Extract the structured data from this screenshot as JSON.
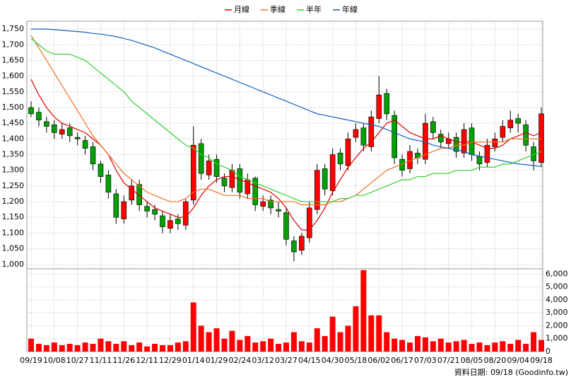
{
  "chart_data": {
    "type": "candlestick",
    "legend": "top",
    "grid": true,
    "up_color": "#ff0000",
    "down_color": "#00a000",
    "wick_color": "#000000",
    "categories": [
      "09/19",
      null,
      null,
      "10/08",
      null,
      null,
      "10/27",
      null,
      null,
      "11/11",
      null,
      null,
      "11/26",
      null,
      null,
      "12/11",
      null,
      null,
      "12/29",
      null,
      null,
      "01/14",
      null,
      null,
      "01/29",
      null,
      null,
      "02/24",
      null,
      null,
      "03/12",
      null,
      null,
      "03/27",
      null,
      null,
      "04/15",
      null,
      null,
      "04/30",
      null,
      null,
      "05/18",
      null,
      null,
      "06/02",
      null,
      null,
      "06/17",
      null,
      null,
      "07/03",
      null,
      null,
      "07/21",
      null,
      null,
      "08/05",
      null,
      null,
      "08/20",
      null,
      null,
      "09/04",
      null,
      null,
      "09/18"
    ],
    "open": [
      1500,
      1485,
      1455,
      1445,
      1415,
      1435,
      1405,
      1395,
      1375,
      1320,
      1285,
      1225,
      1145,
      1205,
      1255,
      1185,
      1175,
      1155,
      1115,
      1145,
      1125,
      1205,
      1385,
      1285,
      1335,
      1275,
      1245,
      1305,
      1225,
      1275,
      1185,
      1205,
      1175,
      1165,
      1075,
      1045,
      1085,
      1175,
      1305,
      1235,
      1355,
      1315,
      1405,
      1435,
      1375,
      1465,
      1545,
      1475,
      1335,
      1305,
      1355,
      1335,
      1455,
      1415,
      1385,
      1405,
      1355,
      1435,
      1345,
      1325,
      1375,
      1405,
      1435,
      1465,
      1445,
      1375,
      1325
    ],
    "high": [
      1520,
      1500,
      1470,
      1460,
      1450,
      1450,
      1420,
      1410,
      1390,
      1330,
      1300,
      1240,
      1220,
      1270,
      1270,
      1200,
      1190,
      1170,
      1160,
      1160,
      1210,
      1440,
      1400,
      1350,
      1350,
      1290,
      1320,
      1320,
      1290,
      1280,
      1220,
      1220,
      1200,
      1180,
      1090,
      1100,
      1200,
      1320,
      1320,
      1370,
      1370,
      1420,
      1450,
      1450,
      1490,
      1600,
      1560,
      1490,
      1350,
      1380,
      1370,
      1480,
      1470,
      1430,
      1420,
      1420,
      1450,
      1450,
      1360,
      1400,
      1420,
      1460,
      1490,
      1480,
      1460,
      1390,
      1500
    ],
    "low": [
      1470,
      1440,
      1420,
      1400,
      1400,
      1390,
      1380,
      1350,
      1300,
      1260,
      1210,
      1130,
      1130,
      1190,
      1170,
      1150,
      1140,
      1100,
      1100,
      1110,
      1110,
      1190,
      1270,
      1270,
      1260,
      1230,
      1230,
      1210,
      1210,
      1170,
      1170,
      1160,
      1150,
      1060,
      1010,
      1030,
      1070,
      1160,
      1220,
      1220,
      1300,
      1300,
      1390,
      1360,
      1360,
      1450,
      1460,
      1320,
      1280,
      1290,
      1320,
      1320,
      1400,
      1370,
      1370,
      1340,
      1340,
      1330,
      1300,
      1310,
      1360,
      1390,
      1420,
      1420,
      1360,
      1300,
      1310
    ],
    "close": [
      1480,
      1460,
      1440,
      1420,
      1430,
      1410,
      1400,
      1370,
      1320,
      1280,
      1230,
      1150,
      1200,
      1250,
      1190,
      1170,
      1160,
      1120,
      1140,
      1130,
      1200,
      1380,
      1290,
      1330,
      1280,
      1250,
      1300,
      1230,
      1270,
      1190,
      1200,
      1180,
      1170,
      1080,
      1040,
      1090,
      1180,
      1300,
      1240,
      1350,
      1320,
      1400,
      1430,
      1380,
      1470,
      1540,
      1480,
      1340,
      1300,
      1360,
      1340,
      1450,
      1420,
      1390,
      1400,
      1360,
      1430,
      1350,
      1320,
      1380,
      1400,
      1440,
      1460,
      1450,
      1380,
      1330,
      1480
    ],
    "series": [
      {
        "name": "月線",
        "color": "#e00000",
        "values": [
          1590,
          1540,
          1500,
          1470,
          1450,
          1440,
          1430,
          1420,
          1400,
          1380,
          1350,
          1300,
          1260,
          1240,
          1220,
          1200,
          1180,
          1170,
          1160,
          1150,
          1150,
          1180,
          1220,
          1250,
          1270,
          1280,
          1280,
          1270,
          1260,
          1250,
          1240,
          1230,
          1210,
          1180,
          1140,
          1110,
          1110,
          1140,
          1180,
          1230,
          1270,
          1310,
          1340,
          1370,
          1390,
          1420,
          1450,
          1460,
          1440,
          1420,
          1410,
          1400,
          1400,
          1410,
          1400,
          1390,
          1390,
          1390,
          1380,
          1370,
          1370,
          1380,
          1400,
          1410,
          1420,
          1410,
          1420
        ]
      },
      {
        "name": "季線",
        "color": "#f07020",
        "values": [
          1730,
          1690,
          1650,
          1610,
          1570,
          1530,
          1490,
          1450,
          1410,
          1380,
          1350,
          1320,
          1290,
          1270,
          1250,
          1230,
          1220,
          1210,
          1200,
          1200,
          1210,
          1230,
          1240,
          1240,
          1230,
          1220,
          1220,
          1220,
          1210,
          1210,
          1210,
          1200,
          1200,
          1200,
          1200,
          1190,
          1190,
          1190,
          1190,
          1200,
          1200,
          1210,
          1220,
          1240,
          1260,
          1280,
          1300,
          1310,
          1320,
          1330,
          1340,
          1350,
          1360,
          1370,
          1370,
          1380,
          1380,
          1390,
          1390,
          1390,
          1390,
          1390,
          1400,
          1400,
          1400,
          1400,
          1400
        ]
      },
      {
        "name": "半年",
        "color": "#30d030",
        "values": [
          1720,
          1700,
          1680,
          1670,
          1670,
          1670,
          1660,
          1650,
          1630,
          1610,
          1590,
          1570,
          1550,
          1520,
          1500,
          1480,
          1460,
          1440,
          1420,
          1400,
          1380,
          1370,
          1350,
          1340,
          1320,
          1310,
          1300,
          1280,
          1270,
          1260,
          1250,
          1240,
          1230,
          1220,
          1210,
          1200,
          1200,
          1200,
          1200,
          1200,
          1210,
          1210,
          1220,
          1220,
          1230,
          1240,
          1250,
          1260,
          1270,
          1270,
          1280,
          1280,
          1290,
          1290,
          1290,
          1300,
          1300,
          1300,
          1310,
          1310,
          1310,
          1320,
          1320,
          1330,
          1340,
          1350,
          1360
        ]
      },
      {
        "name": "年線",
        "color": "#1060c0",
        "values": [
          1750,
          1750,
          1750,
          1748,
          1746,
          1744,
          1742,
          1740,
          1736,
          1734,
          1730,
          1726,
          1720,
          1714,
          1706,
          1698,
          1690,
          1680,
          1670,
          1660,
          1650,
          1640,
          1630,
          1620,
          1610,
          1600,
          1590,
          1580,
          1570,
          1560,
          1550,
          1540,
          1530,
          1520,
          1510,
          1500,
          1490,
          1480,
          1475,
          1470,
          1465,
          1460,
          1455,
          1450,
          1445,
          1440,
          1430,
          1420,
          1410,
          1400,
          1395,
          1390,
          1380,
          1375,
          1370,
          1365,
          1360,
          1350,
          1345,
          1340,
          1335,
          1330,
          1325,
          1320,
          1318,
          1315,
          1312
        ]
      }
    ],
    "ylim": [
      986,
      1775
    ],
    "yticks": [
      {
        "value": 1000,
        "label": "1,000"
      },
      {
        "value": 1050,
        "label": "1,050"
      },
      {
        "value": 1100,
        "label": "1,100"
      },
      {
        "value": 1150,
        "label": "1,150"
      },
      {
        "value": 1200,
        "label": "1,200"
      },
      {
        "value": 1250,
        "label": "1,250"
      },
      {
        "value": 1300,
        "label": "1,300"
      },
      {
        "value": 1350,
        "label": "1,350"
      },
      {
        "value": 1400,
        "label": "1,400"
      },
      {
        "value": 1450,
        "label": "1,450"
      },
      {
        "value": 1500,
        "label": "1,500"
      },
      {
        "value": 1550,
        "label": "1,550"
      },
      {
        "value": 1600,
        "label": "1,600"
      },
      {
        "value": 1650,
        "label": "1,650"
      },
      {
        "value": 1700,
        "label": "1,700"
      },
      {
        "value": 1750,
        "label": "1,750"
      }
    ],
    "volume": {
      "color": "#ff0000",
      "values": [
        1000,
        600,
        500,
        700,
        500,
        600,
        500,
        700,
        600,
        1000,
        800,
        600,
        800,
        500,
        700,
        400,
        600,
        500,
        500,
        700,
        800,
        3800,
        2000,
        1500,
        1800,
        1000,
        1600,
        900,
        1200,
        700,
        800,
        1000,
        600,
        700,
        1500,
        800,
        700,
        1800,
        1200,
        2700,
        1500,
        2000,
        3500,
        6300,
        2800,
        2800,
        1500,
        1000,
        900,
        700,
        1200,
        1100,
        800,
        1000,
        700,
        800,
        900,
        600,
        700,
        500,
        700,
        800,
        600,
        900,
        600,
        1500,
        900
      ],
      "ylim": [
        0,
        6400
      ],
      "yticks": [
        0,
        {
          "value": 1000,
          "label": "1,000"
        },
        {
          "value": 2000,
          "label": "2,000"
        },
        {
          "value": 3000,
          "label": "3,000"
        },
        {
          "value": 4000,
          "label": "4,000"
        },
        {
          "value": 5000,
          "label": "5,000"
        },
        {
          "value": 6000,
          "label": "6,000"
        }
      ]
    },
    "footer": "資料日期: 09/18 (Goodinfo.tw)"
  }
}
